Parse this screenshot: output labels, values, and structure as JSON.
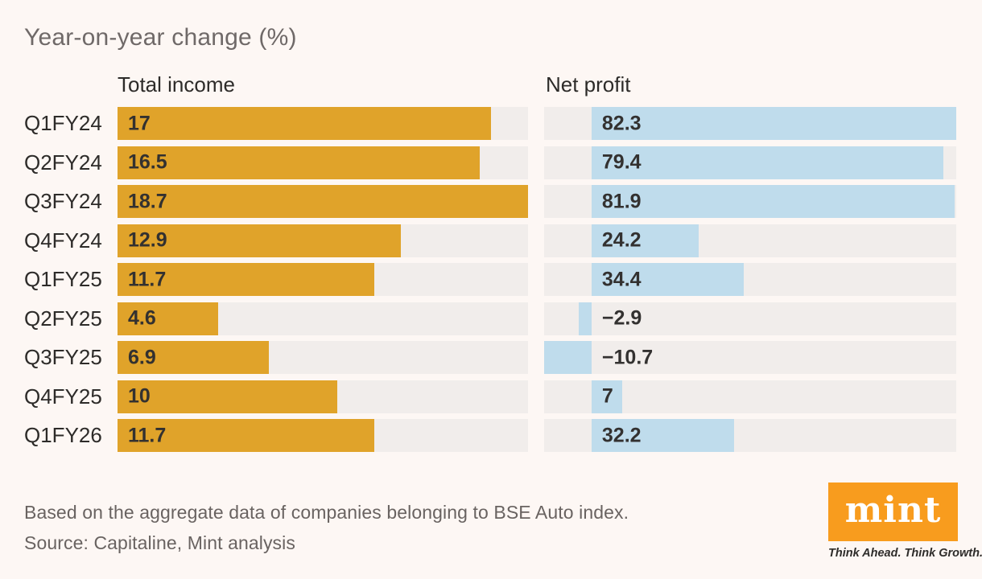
{
  "title": "Year-on-year change (%)",
  "column_headers": {
    "left": "Total income",
    "right": "Net profit"
  },
  "chart_data": {
    "type": "bar",
    "orientation": "horizontal",
    "title": "Year-on-year change (%)",
    "categories": [
      "Q1FY24",
      "Q2FY24",
      "Q3FY24",
      "Q4FY24",
      "Q1FY25",
      "Q2FY25",
      "Q3FY25",
      "Q4FY25",
      "Q1FY26"
    ],
    "series": [
      {
        "name": "Total income",
        "values": [
          17,
          16.5,
          18.7,
          12.9,
          11.7,
          4.6,
          6.9,
          10,
          11.7
        ],
        "labels": [
          "17",
          "16.5",
          "18.7",
          "12.9",
          "11.7",
          "4.6",
          "6.9",
          "10",
          "11.7"
        ],
        "color": "#E0A32A",
        "axis": {
          "min": 0,
          "max": 18.7
        }
      },
      {
        "name": "Net profit",
        "values": [
          82.3,
          79.4,
          81.9,
          24.2,
          34.4,
          -2.9,
          -10.7,
          7,
          32.2
        ],
        "labels": [
          "82.3",
          "79.4",
          "81.9",
          "24.2",
          "34.4",
          "−2.9",
          "−10.7",
          "7",
          "32.2"
        ],
        "color": "#BFDCEC",
        "axis": {
          "min": -10.7,
          "max": 82.3
        }
      }
    ],
    "grid": false,
    "legend_position": "column-headers",
    "value_labels_shown": true
  },
  "footer": {
    "note": "Based on the aggregate data of companies belonging to BSE Auto index.",
    "source": "Source: Capitaline, Mint analysis"
  },
  "logo": {
    "text": "mint",
    "tagline": "Think Ahead. Think Growth.",
    "box_color": "#F89C1E"
  },
  "colors": {
    "background": "#FDF7F4",
    "track": "#F1EDEB",
    "income_bar": "#E0A32A",
    "profit_bar": "#BFDCEC",
    "text_dark": "#2D2B29",
    "text_gray": "#696361"
  }
}
